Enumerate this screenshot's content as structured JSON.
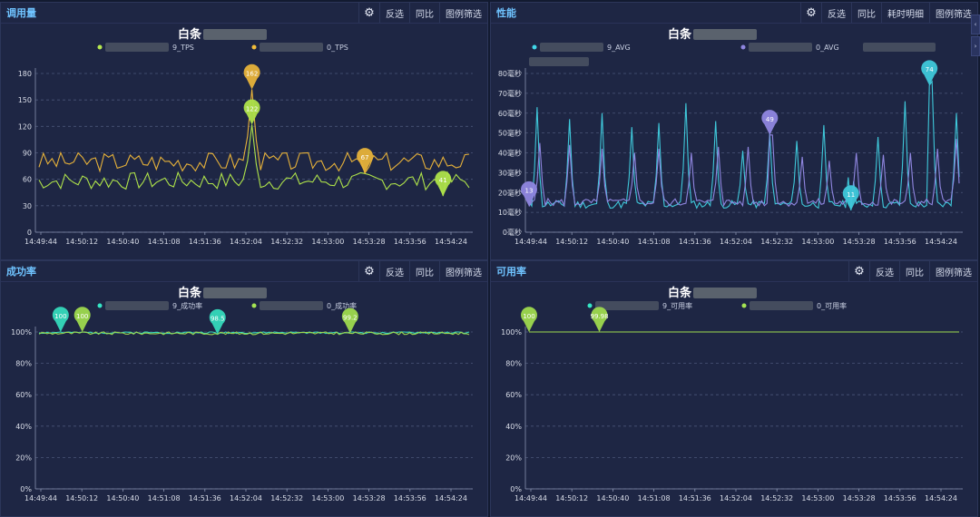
{
  "colors": {
    "panel_bg": "#1e2644",
    "grid": "#4a5578",
    "axis_text": "#d9dde8",
    "title_text": "#ffffff",
    "legend_text": "#c9d0e2",
    "blur": "#8d948f"
  },
  "panels": [
    {
      "id": "calls",
      "title": "调用量",
      "tools": [
        "反选",
        "同比",
        "图例筛选"
      ],
      "chart_data": {
        "type": "line",
        "title": "白条",
        "legend": [
          {
            "name": "9_TPS",
            "color": "#b6e84f"
          },
          {
            "name": "0_TPS",
            "color": "#f2bd3a"
          }
        ],
        "ylim": [
          0,
          180
        ],
        "y_ticks": [
          0,
          30,
          60,
          90,
          120,
          150,
          180
        ],
        "y_unit": "",
        "x_ticks": [
          "14:49:44",
          "14:50:12",
          "14:50:40",
          "14:51:08",
          "14:51:36",
          "14:52:04",
          "14:52:32",
          "14:53:00",
          "14:53:28",
          "14:53:56",
          "14:54:24"
        ],
        "n": 100,
        "series": [
          {
            "name": "9_TPS",
            "color": "#aee24a",
            "base": 58,
            "amp": 10,
            "seed": 7,
            "spikes": [
              [
                49,
                122
              ]
            ],
            "markers": [
              [
                49,
                122,
                "122"
              ],
              [
                93,
                41,
                "41"
              ]
            ]
          },
          {
            "name": "0_TPS",
            "color": "#e7b23a",
            "base": 80,
            "amp": 11,
            "seed": 3,
            "spikes": [
              [
                49,
                162
              ]
            ],
            "markers": [
              [
                49,
                162,
                "162"
              ],
              [
                75,
                67,
                "67"
              ]
            ]
          }
        ]
      }
    },
    {
      "id": "perf",
      "title": "性能",
      "tools": [
        "反选",
        "同比",
        "耗时明细",
        "图例筛选"
      ],
      "chart_data": {
        "type": "line",
        "title": "白条",
        "legend": [
          {
            "name": "9_AVG",
            "color": "#41d6e8"
          },
          {
            "name": "0_AVG",
            "color": "#8f86e0"
          }
        ],
        "ylim": [
          0,
          80
        ],
        "y_ticks": [
          0,
          10,
          20,
          30,
          40,
          50,
          60,
          70,
          80
        ],
        "y_unit": "毫秒",
        "x_ticks": [
          "14:49:44",
          "14:50:12",
          "14:50:40",
          "14:51:08",
          "14:51:36",
          "14:52:04",
          "14:52:32",
          "14:53:00",
          "14:53:28",
          "14:53:56",
          "14:54:24"
        ],
        "n": 160,
        "series": [
          {
            "name": "9_AVG",
            "color": "#3fc8da",
            "base": 14,
            "amp": 2,
            "seed": 11,
            "spikes": [
              [
                3,
                63
              ],
              [
                15,
                57
              ],
              [
                27,
                60
              ],
              [
                38,
                53
              ],
              [
                48,
                55
              ],
              [
                58,
                65
              ],
              [
                69,
                56
              ],
              [
                79,
                41
              ],
              [
                89,
                50
              ],
              [
                99,
                46
              ],
              [
                109,
                54
              ],
              [
                119,
                53
              ],
              [
                129,
                48
              ],
              [
                139,
                66
              ],
              [
                149,
                76
              ],
              [
                158,
                60
              ]
            ],
            "markers": [
              [
                119,
                11,
                "11"
              ],
              [
                148,
                74,
                "74"
              ]
            ]
          },
          {
            "name": "0_AVG",
            "color": "#8f86e0",
            "base": 15,
            "amp": 2,
            "seed": 5,
            "spikes": [
              [
                4,
                45
              ],
              [
                15,
                44
              ],
              [
                27,
                42
              ],
              [
                39,
                40
              ],
              [
                48,
                42
              ],
              [
                60,
                40
              ],
              [
                70,
                43
              ],
              [
                81,
                43
              ],
              [
                90,
                49
              ],
              [
                101,
                38
              ],
              [
                111,
                36
              ],
              [
                121,
                40
              ],
              [
                131,
                39
              ],
              [
                141,
                40
              ],
              [
                151,
                42
              ],
              [
                158,
                47
              ]
            ],
            "markers": [
              [
                0,
                13,
                "13"
              ],
              [
                89,
                49,
                "49"
              ]
            ]
          }
        ]
      }
    },
    {
      "id": "success",
      "title": "成功率",
      "tools": [
        "反选",
        "同比",
        "图例筛选"
      ],
      "chart_data": {
        "type": "line",
        "title": "白条",
        "legend": [
          {
            "name": "9_成功率",
            "color": "#35e6c5"
          },
          {
            "name": "0_成功率",
            "color": "#a5e553"
          }
        ],
        "ylim": [
          0,
          100
        ],
        "y_ticks": [
          0,
          20,
          40,
          60,
          80,
          100
        ],
        "y_unit": "%",
        "x_ticks": [
          "14:49:44",
          "14:50:12",
          "14:50:40",
          "14:51:08",
          "14:51:36",
          "14:52:04",
          "14:52:32",
          "14:53:00",
          "14:53:28",
          "14:53:56",
          "14:54:24"
        ],
        "n": 160,
        "series": [
          {
            "name": "9_成功率",
            "color": "#35d9bc",
            "base": 99.6,
            "amp": 0.6,
            "seed": 2,
            "spikes": [],
            "clip": 100,
            "markers": [
              [
                8,
                100,
                "100"
              ],
              [
                66,
                98.5,
                "98.5"
              ]
            ]
          },
          {
            "name": "0_成功率",
            "color": "#9ed94e",
            "base": 99.2,
            "amp": 0.9,
            "seed": 9,
            "spikes": [],
            "clip": 100,
            "markers": [
              [
                16,
                100,
                "100"
              ],
              [
                115,
                99.2,
                "99.2"
              ]
            ]
          }
        ]
      }
    },
    {
      "id": "availability",
      "title": "可用率",
      "tools": [
        "反选",
        "同比",
        "图例筛选"
      ],
      "chart_data": {
        "type": "line",
        "title": "白条",
        "legend": [
          {
            "name": "9_可用率",
            "color": "#35e6c5"
          },
          {
            "name": "0_可用率",
            "color": "#a5e553"
          }
        ],
        "ylim": [
          0,
          100
        ],
        "y_ticks": [
          0,
          20,
          40,
          60,
          80,
          100
        ],
        "y_unit": "%",
        "x_ticks": [
          "14:49:44",
          "14:50:12",
          "14:50:40",
          "14:51:08",
          "14:51:36",
          "14:52:04",
          "14:52:32",
          "14:53:00",
          "14:53:28",
          "14:53:56",
          "14:54:24"
        ],
        "n": 160,
        "series": [
          {
            "name": "9_可用率",
            "color": "#35d9bc",
            "base": 100,
            "amp": 0,
            "seed": 1,
            "spikes": [],
            "markers": []
          },
          {
            "name": "0_可用率",
            "color": "#9ed94e",
            "base": 100,
            "amp": 0,
            "seed": 4,
            "spikes": [],
            "markers": [
              [
                0,
                100,
                "100"
              ],
              [
                26,
                99.98,
                "99.98"
              ]
            ]
          }
        ]
      }
    }
  ]
}
